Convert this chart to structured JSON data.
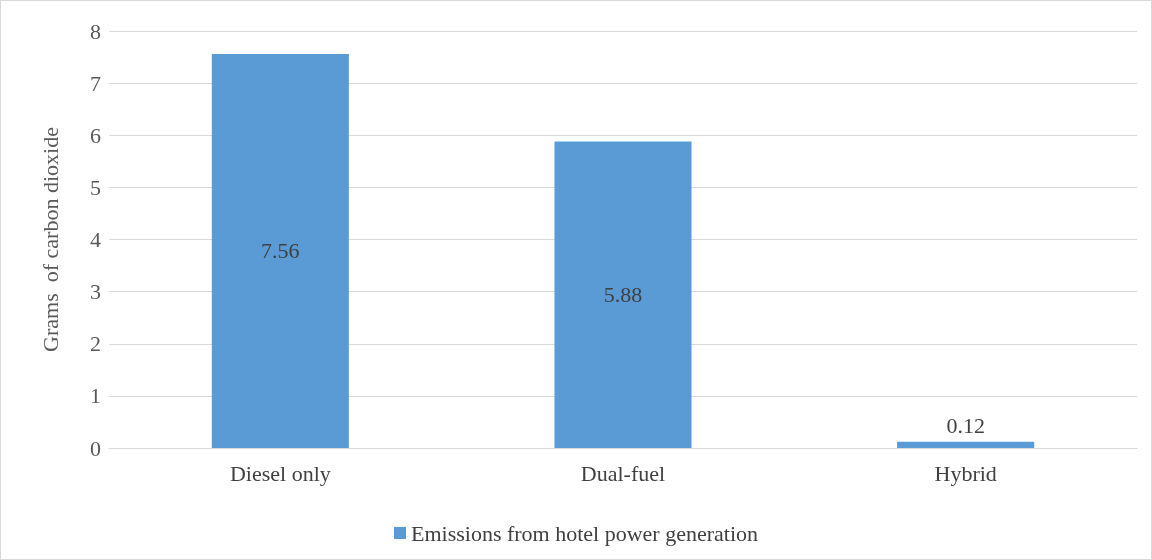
{
  "chart_data": {
    "type": "bar",
    "ylabel": "Grams  of carbon dioxide",
    "categories": [
      "Diesel only",
      "Dual-fuel",
      "Hybrid"
    ],
    "series": [
      {
        "name": "Emissions from hotel power generation",
        "color": "#5b9bd5",
        "values": [
          7.56,
          5.88,
          0.12
        ]
      }
    ],
    "ylim": [
      0,
      8
    ],
    "yticks": [
      0,
      1,
      2,
      3,
      4,
      5,
      6,
      7,
      8
    ],
    "grid": "y",
    "legend": "bottom",
    "data_labels": true
  }
}
